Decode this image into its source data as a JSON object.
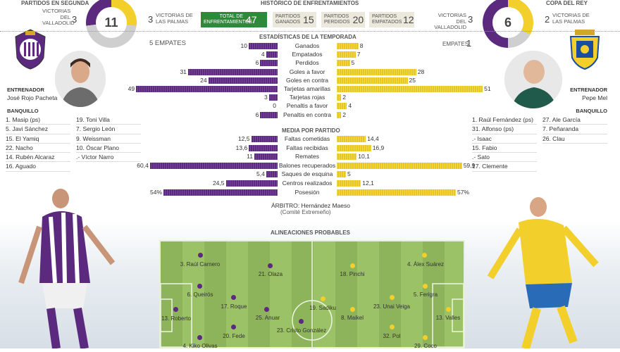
{
  "headers": {
    "league_title": "PARTIDOS EN SEGUNDA",
    "history_title": "HISTÓRICO DE ENFRENTAMIENTOS",
    "cup_title": "COPA DEL REY",
    "season_title": "ESTADÍSTICAS DE LA TEMPORADA",
    "average_title": "MEDIA POR PARTIDO",
    "lineups_title": "ALINEACIONES PROBABLES"
  },
  "league": {
    "valladolid_label": "VICTORIAS DEL VALLADOLID",
    "valladolid_value": "3",
    "total": "11",
    "laspalmas_label": "VICTORIAS DE LAS PALMAS",
    "laspalmas_value": "3",
    "draws": "5 EMPATES"
  },
  "history": {
    "total_label": "TOTAL DE ENFRENTAMIENTOS",
    "total_value": "47",
    "won_label": "PARTIDOS GANADOS",
    "won_value": "15",
    "lost_label": "PARTIDOS PERDIDOS",
    "lost_value": "20",
    "drawn_label": "PARTIDOS EMPATADOS",
    "drawn_value": "12"
  },
  "cup": {
    "valladolid_label": "VICTORIAS DEL VALLADOLID",
    "valladolid_value": "3",
    "total": "6",
    "laspalmas_label": "VICTORIAS DE LAS PALMAS",
    "laspalmas_value": "2",
    "draws_label": "EMPATES",
    "draws_value": "1"
  },
  "colors": {
    "valladolid": "#5b2a7e",
    "laspalmas": "#f2cf2a",
    "neutral": "#cfcfcf",
    "pitch": "#8db45a"
  },
  "season_stats": [
    {
      "label": "Ganados",
      "left": "10",
      "right": "8",
      "lv": 10,
      "rv": 8
    },
    {
      "label": "Empatados",
      "left": "4",
      "right": "7",
      "lv": 4,
      "rv": 7
    },
    {
      "label": "Perdidos",
      "left": "6",
      "right": "5",
      "lv": 6,
      "rv": 5
    },
    {
      "label": "Goles a favor",
      "left": "31",
      "right": "28",
      "lv": 31,
      "rv": 28
    },
    {
      "label": "Goles en contra",
      "left": "24",
      "right": "25",
      "lv": 24,
      "rv": 25
    },
    {
      "label": "Tarjetas amarillas",
      "left": "49",
      "right": "51",
      "lv": 49,
      "rv": 51
    },
    {
      "label": "Tarjetas rojas",
      "left": "3",
      "right": "2",
      "lv": 3,
      "rv": 2
    },
    {
      "label": "Penaltis a favor",
      "left": "0",
      "right": "4",
      "lv": 0,
      "rv": 4
    },
    {
      "label": "Penaltis en contra",
      "left": "6",
      "right": "2",
      "lv": 6,
      "rv": 2
    }
  ],
  "average_stats": [
    {
      "label": "Faltas cometidas",
      "left": "12,5",
      "right": "14,4",
      "lv": 12.5,
      "rv": 14.4
    },
    {
      "label": "Faltas recibidas",
      "left": "13,6",
      "right": "16,9",
      "lv": 13.6,
      "rv": 16.9
    },
    {
      "label": "Remates",
      "left": "11",
      "right": "10,1",
      "lv": 11,
      "rv": 10.1
    },
    {
      "label": "Balones recuperados",
      "left": "60,4",
      "right": "59,9",
      "lv": 60.4,
      "rv": 59.9
    },
    {
      "label": "Saques de esquina",
      "left": "5,4",
      "right": "5",
      "lv": 5.4,
      "rv": 5
    },
    {
      "label": "Centros realizados",
      "left": "24,5",
      "right": "12,1",
      "lv": 24.5,
      "rv": 12.1
    },
    {
      "label": "Posesión",
      "left": "54%",
      "right": "57%",
      "lv": 54,
      "rv": 57
    }
  ],
  "referee": "ÁRBITRO: Hernández Maeso",
  "referee_committee": "(Comité Extremeño)",
  "valladolid": {
    "coach_label": "ENTRENADOR",
    "coach_name": "José Rojo Pacheta",
    "bench_label": "BANQUILLO",
    "bench_col1": [
      "1. Masip (ps)",
      "5. Javi Sánchez",
      "15. El Yamiq",
      "22. Nacho",
      "14. Rubén Alcaraz",
      "16. Aguado"
    ],
    "bench_col2": [
      "19. Toni Villa",
      "7. Sergio León",
      "9. Weissman",
      "10. Óscar Plano",
      ".- Víctor Narro"
    ]
  },
  "laspalmas": {
    "coach_label": "ENTRENADOR",
    "coach_name": "Pepe Mel",
    "bench_label": "BANQUILLO",
    "bench_col1": [
      "1. Raúl Fernández (ps)",
      "31. Alfonso (ps)",
      ".- Isaac",
      "15. Fabio",
      ".- Sato",
      "17. Clemente"
    ],
    "bench_col2": [
      "27. Ale García",
      "7. Peñaranda",
      "26. Clau"
    ]
  },
  "lineup_valladolid": [
    "3. Raúl Carnero",
    "21. Olaza",
    "6. Queirós",
    "17. Roque",
    "25. Anuar",
    "13. Roberto",
    "20. Fede",
    "23. Cristo González",
    "4. Kiko Olivas"
  ],
  "lineup_laspalmas": [
    "18. Pinchi",
    "4. Álex Suárez",
    "5. Ferigra",
    "23. Unai Veiga",
    "19. Sadiku",
    "8. Maikel",
    "13. Valles",
    "32. Pol",
    "29. Coco"
  ]
}
